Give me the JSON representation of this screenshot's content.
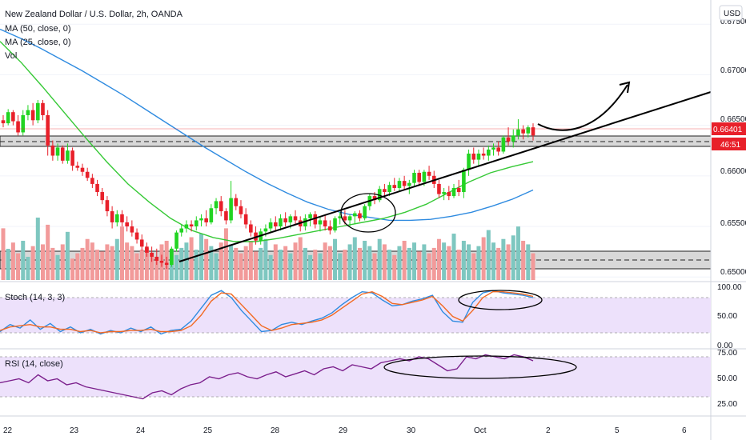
{
  "header": {
    "title": "New Zealand Dollar / U.S. Dollar, 2h, OANDA",
    "ma50_label": "MA (50, close, 0)",
    "ma25_label": "MA (25, close, 0)",
    "vol_label": "Vol",
    "currency_button": "USD"
  },
  "price_axis": {
    "ticks": [
      "0.67500",
      "0.67000",
      "0.66500",
      "0.66000",
      "0.65500",
      "0.65000"
    ],
    "last_price": "0.66401",
    "countdown": "46:51"
  },
  "stoch": {
    "label": "Stoch (14, 3, 3)",
    "ticks": [
      "100.00",
      "50.00",
      "0.00"
    ]
  },
  "rsi": {
    "label": "RSI (14, close)",
    "ticks": [
      "75.00",
      "50.00",
      "25.00"
    ]
  },
  "time_axis": {
    "labels": [
      "22",
      "23",
      "24",
      "25",
      "28",
      "29",
      "30",
      "Oct",
      "2",
      "5",
      "6"
    ]
  },
  "colors": {
    "up": "#22d422",
    "down": "#e8202a",
    "ma50": "#2f8be0",
    "ma25": "#36c936",
    "vol_up": "#7ec7c0",
    "vol_down": "#f29a9a",
    "stoch_k": "#2f8be0",
    "stoch_d": "#f26a22",
    "rsi": "#7b1f8c",
    "band": "#ede1fb"
  },
  "chart_data": {
    "type": "candlestick",
    "symbol": "NZDUSD",
    "timeframe": "2h",
    "ylim": [
      0.6497,
      0.6766
    ],
    "candles": [
      [
        0.6655,
        0.666,
        0.6648,
        0.6652
      ],
      [
        0.6652,
        0.6666,
        0.665,
        0.6663
      ],
      [
        0.6663,
        0.6665,
        0.665,
        0.6654
      ],
      [
        0.6654,
        0.666,
        0.664,
        0.6643
      ],
      [
        0.6643,
        0.6665,
        0.664,
        0.666
      ],
      [
        0.666,
        0.667,
        0.6655,
        0.6665
      ],
      [
        0.6665,
        0.6672,
        0.665,
        0.6655
      ],
      [
        0.6655,
        0.6675,
        0.6652,
        0.6672
      ],
      [
        0.6672,
        0.6675,
        0.6655,
        0.666
      ],
      [
        0.666,
        0.6665,
        0.662,
        0.663
      ],
      [
        0.663,
        0.6635,
        0.6615,
        0.662
      ],
      [
        0.662,
        0.6632,
        0.6615,
        0.6628
      ],
      [
        0.6628,
        0.663,
        0.6612,
        0.6615
      ],
      [
        0.6615,
        0.6632,
        0.6612,
        0.6625
      ],
      [
        0.6625,
        0.6628,
        0.6605,
        0.661
      ],
      [
        0.661,
        0.6614,
        0.6605,
        0.6608
      ],
      [
        0.6608,
        0.6612,
        0.66,
        0.6604
      ],
      [
        0.6604,
        0.6608,
        0.6595,
        0.6598
      ],
      [
        0.6598,
        0.6602,
        0.6588,
        0.6592
      ],
      [
        0.6592,
        0.6596,
        0.658,
        0.6584
      ],
      [
        0.6584,
        0.6588,
        0.6572,
        0.6576
      ],
      [
        0.6576,
        0.658,
        0.656,
        0.6565
      ],
      [
        0.6565,
        0.657,
        0.6548,
        0.6554
      ],
      [
        0.6554,
        0.6566,
        0.655,
        0.6562
      ],
      [
        0.6562,
        0.6566,
        0.655,
        0.6554
      ],
      [
        0.6554,
        0.656,
        0.6545,
        0.655
      ],
      [
        0.655,
        0.6556,
        0.654,
        0.6544
      ],
      [
        0.6544,
        0.6548,
        0.6533,
        0.6537
      ],
      [
        0.6537,
        0.6542,
        0.6526,
        0.653
      ],
      [
        0.653,
        0.6534,
        0.652,
        0.6524
      ],
      [
        0.6524,
        0.653,
        0.6515,
        0.652
      ],
      [
        0.652,
        0.6528,
        0.6512,
        0.6516
      ],
      [
        0.6516,
        0.6522,
        0.651,
        0.6514
      ],
      [
        0.6514,
        0.652,
        0.6508,
        0.6512
      ],
      [
        0.6512,
        0.653,
        0.651,
        0.6528
      ],
      [
        0.6528,
        0.6546,
        0.6525,
        0.6544
      ],
      [
        0.6544,
        0.6552,
        0.654,
        0.6548
      ],
      [
        0.6548,
        0.6556,
        0.6544,
        0.6552
      ],
      [
        0.6552,
        0.6556,
        0.6545,
        0.655
      ],
      [
        0.655,
        0.656,
        0.6546,
        0.6556
      ],
      [
        0.6556,
        0.6562,
        0.655,
        0.6558
      ],
      [
        0.6558,
        0.6566,
        0.655,
        0.6554
      ],
      [
        0.6554,
        0.6572,
        0.6552,
        0.6568
      ],
      [
        0.6568,
        0.6578,
        0.6562,
        0.6575
      ],
      [
        0.6575,
        0.658,
        0.656,
        0.6565
      ],
      [
        0.6565,
        0.6568,
        0.6552,
        0.6556
      ],
      [
        0.6556,
        0.6595,
        0.6553,
        0.6578
      ],
      [
        0.6578,
        0.6582,
        0.6566,
        0.657
      ],
      [
        0.657,
        0.6576,
        0.6558,
        0.6562
      ],
      [
        0.6562,
        0.6568,
        0.6548,
        0.6552
      ],
      [
        0.6552,
        0.6556,
        0.654,
        0.6544
      ],
      [
        0.6544,
        0.655,
        0.6532,
        0.6536
      ],
      [
        0.6536,
        0.6548,
        0.6532,
        0.6545
      ],
      [
        0.6545,
        0.6552,
        0.654,
        0.6548
      ],
      [
        0.6548,
        0.6558,
        0.6544,
        0.6554
      ],
      [
        0.6554,
        0.656,
        0.6546,
        0.655
      ],
      [
        0.655,
        0.6562,
        0.6546,
        0.6558
      ],
      [
        0.6558,
        0.6564,
        0.655,
        0.6554
      ],
      [
        0.6554,
        0.6562,
        0.6548,
        0.656
      ],
      [
        0.656,
        0.6566,
        0.6552,
        0.6556
      ],
      [
        0.6556,
        0.656,
        0.6545,
        0.655
      ],
      [
        0.655,
        0.6562,
        0.6546,
        0.6558
      ],
      [
        0.6558,
        0.6564,
        0.655,
        0.6562
      ],
      [
        0.6562,
        0.6565,
        0.6548,
        0.6552
      ],
      [
        0.6552,
        0.656,
        0.6545,
        0.6556
      ],
      [
        0.6556,
        0.6562,
        0.6546,
        0.655
      ],
      [
        0.655,
        0.6556,
        0.6542,
        0.6546
      ],
      [
        0.6546,
        0.656,
        0.6544,
        0.6558
      ],
      [
        0.6558,
        0.6564,
        0.6552,
        0.656
      ],
      [
        0.656,
        0.6566,
        0.6552,
        0.6556
      ],
      [
        0.6556,
        0.6562,
        0.655,
        0.656
      ],
      [
        0.656,
        0.6565,
        0.6552,
        0.6563
      ],
      [
        0.6563,
        0.6566,
        0.6555,
        0.6558
      ],
      [
        0.6558,
        0.6572,
        0.6556,
        0.657
      ],
      [
        0.657,
        0.6582,
        0.6566,
        0.658
      ],
      [
        0.658,
        0.6584,
        0.6572,
        0.6576
      ],
      [
        0.6576,
        0.659,
        0.6574,
        0.6587
      ],
      [
        0.6587,
        0.6592,
        0.658,
        0.6584
      ],
      [
        0.6584,
        0.6594,
        0.658,
        0.6591
      ],
      [
        0.6591,
        0.6598,
        0.6585,
        0.6588
      ],
      [
        0.6588,
        0.6598,
        0.6584,
        0.6595
      ],
      [
        0.6595,
        0.66,
        0.6586,
        0.659
      ],
      [
        0.659,
        0.6596,
        0.6582,
        0.6593
      ],
      [
        0.6593,
        0.6606,
        0.659,
        0.6603
      ],
      [
        0.6603,
        0.6606,
        0.659,
        0.6594
      ],
      [
        0.6594,
        0.6606,
        0.659,
        0.6604
      ],
      [
        0.6604,
        0.661,
        0.6596,
        0.66
      ],
      [
        0.66,
        0.6605,
        0.6588,
        0.6592
      ],
      [
        0.6592,
        0.6596,
        0.6578,
        0.6582
      ],
      [
        0.6582,
        0.6588,
        0.6576,
        0.6584
      ],
      [
        0.6584,
        0.659,
        0.6576,
        0.658
      ],
      [
        0.658,
        0.6592,
        0.6578,
        0.6588
      ],
      [
        0.6588,
        0.6596,
        0.658,
        0.6584
      ],
      [
        0.6584,
        0.6608,
        0.6578,
        0.6606
      ],
      [
        0.6606,
        0.6626,
        0.66,
        0.6622
      ],
      [
        0.6622,
        0.6628,
        0.6612,
        0.6616
      ],
      [
        0.6616,
        0.6626,
        0.661,
        0.6622
      ],
      [
        0.6622,
        0.6628,
        0.6616,
        0.662
      ],
      [
        0.662,
        0.663,
        0.6615,
        0.6626
      ],
      [
        0.6626,
        0.6632,
        0.662,
        0.6628
      ],
      [
        0.6628,
        0.6634,
        0.662,
        0.6624
      ],
      [
        0.6624,
        0.664,
        0.6622,
        0.6638
      ],
      [
        0.6638,
        0.6648,
        0.663,
        0.6634
      ],
      [
        0.6634,
        0.6646,
        0.6628,
        0.664
      ],
      [
        0.664,
        0.6656,
        0.6636,
        0.6646
      ],
      [
        0.6646,
        0.665,
        0.6636,
        0.6642
      ],
      [
        0.6642,
        0.665,
        0.6638,
        0.6648
      ],
      [
        0.6648,
        0.6652,
        0.6635,
        0.664
      ]
    ],
    "volume": [
      58,
      35,
      42,
      30,
      44,
      26,
      38,
      70,
      40,
      62,
      36,
      28,
      40,
      54,
      24,
      30,
      36,
      46,
      42,
      34,
      32,
      40,
      38,
      46,
      60,
      42,
      38,
      30,
      34,
      36,
      30,
      26,
      40,
      44,
      34,
      28,
      36,
      42,
      48,
      34,
      52,
      46,
      38,
      30,
      42,
      58,
      40,
      36,
      30,
      38,
      44,
      32,
      36,
      46,
      28,
      40,
      34,
      38,
      30,
      42,
      48,
      36,
      28,
      34,
      30,
      42,
      38,
      46,
      30,
      34,
      40,
      48,
      36,
      44,
      38,
      30,
      46,
      40,
      34,
      28,
      38,
      44,
      36,
      42,
      32,
      40,
      30,
      36,
      46,
      42,
      38,
      52,
      34,
      44,
      40,
      30,
      38,
      48,
      56,
      42,
      36,
      46,
      40,
      50,
      60,
      44,
      40,
      30
    ],
    "ma50": [
      0.6745,
      0.6736,
      0.6726,
      0.6715,
      0.6704,
      0.6692,
      0.668,
      0.6667,
      0.6654,
      0.6641,
      0.6628,
      0.6616,
      0.6604,
      0.6593,
      0.6583,
      0.6574,
      0.6567,
      0.6562,
      0.6559,
      0.6556,
      0.6556,
      0.6557,
      0.656,
      0.6564,
      0.657,
      0.6577,
      0.6586
    ],
    "ma25": [
      0.6733,
      0.6712,
      0.6688,
      0.6663,
      0.6638,
      0.6614,
      0.6592,
      0.6574,
      0.6558,
      0.6546,
      0.6539,
      0.6535,
      0.6535,
      0.6538,
      0.6542,
      0.6546,
      0.655,
      0.6554,
      0.6558,
      0.6564,
      0.6572,
      0.6583,
      0.6594,
      0.6603,
      0.6609,
      0.6614
    ],
    "stoch_k": [
      22,
      34,
      28,
      42,
      26,
      36,
      22,
      30,
      20,
      26,
      18,
      24,
      20,
      28,
      22,
      30,
      18,
      24,
      26,
      40,
      62,
      84,
      92,
      80,
      58,
      40,
      22,
      24,
      34,
      38,
      34,
      40,
      45,
      54,
      68,
      80,
      90,
      88,
      76,
      66,
      68,
      74,
      78,
      84,
      56,
      40,
      38,
      72,
      88,
      92,
      88,
      86,
      84,
      80
    ],
    "stoch_d": [
      24,
      30,
      32,
      34,
      30,
      30,
      26,
      26,
      22,
      24,
      20,
      22,
      22,
      24,
      24,
      26,
      22,
      22,
      24,
      32,
      50,
      74,
      88,
      86,
      68,
      50,
      32,
      24,
      28,
      34,
      36,
      38,
      42,
      50,
      62,
      74,
      86,
      90,
      82,
      70,
      68,
      72,
      76,
      82,
      66,
      48,
      40,
      58,
      80,
      90,
      90,
      88,
      86,
      82
    ],
    "rsi": [
      44,
      46,
      48,
      44,
      52,
      46,
      48,
      42,
      44,
      40,
      38,
      36,
      34,
      32,
      30,
      28,
      34,
      36,
      32,
      38,
      42,
      44,
      50,
      48,
      52,
      54,
      50,
      48,
      52,
      55,
      50,
      53,
      56,
      52,
      58,
      60,
      56,
      62,
      60,
      58,
      64,
      66,
      68,
      66,
      70,
      68,
      62,
      56,
      58,
      70,
      68,
      72,
      70,
      68,
      72,
      70,
      66
    ]
  }
}
